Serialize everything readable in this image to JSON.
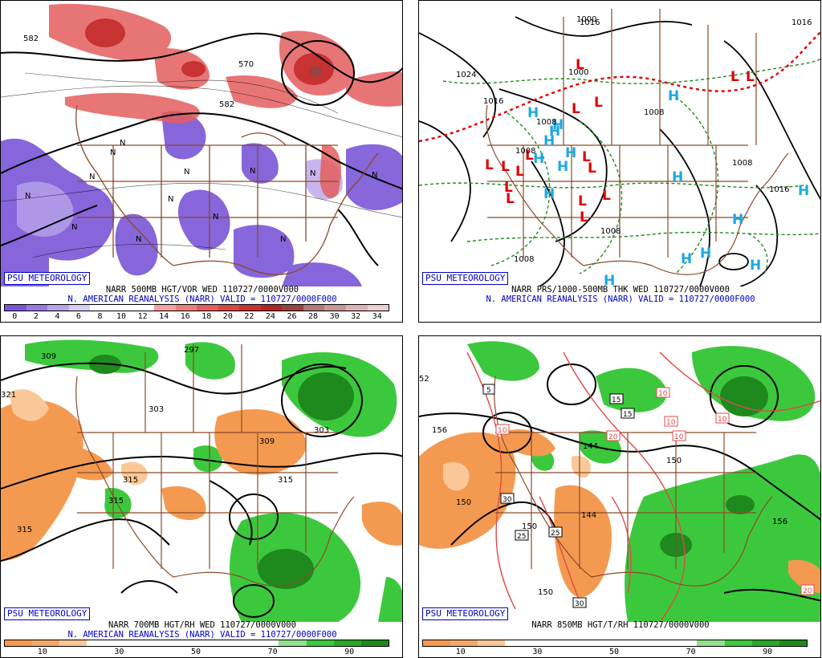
{
  "badge": "PSU METEOROLOGY",
  "panels": [
    {
      "title": "NARR 500MB HGT/VOR WED 110727/0000V000",
      "subtitle": "N. AMERICAN REANALYSIS (NARR) VALID = 110727/0000F000",
      "colorbar_colors": [
        "#7a56d6",
        "#9a7ae0",
        "#b9a4ea",
        "#d8cdf4",
        "#ffffff",
        "#ffffff",
        "#ffffff",
        "#f4a0a0",
        "#ee7e7e",
        "#e45e5e",
        "#d84646",
        "#c83232",
        "#b02626",
        "#9c4040",
        "#b07a7a",
        "#c89898",
        "#dcb4b4",
        "#ecd0d0"
      ],
      "colorbar_ticks": [
        "0",
        "2",
        "4",
        "6",
        "8",
        "10",
        "12",
        "14",
        "16",
        "18",
        "20",
        "22",
        "24",
        "26",
        "28",
        "30",
        "32",
        "34"
      ],
      "contour_labels": [
        "582",
        "570",
        "582"
      ],
      "symbols": [
        "N",
        "N",
        "N",
        "N",
        "N",
        "N",
        "N",
        "N",
        "N",
        "N",
        "N",
        "N",
        "N"
      ]
    },
    {
      "title": "NARR PRS/1000-500MB THK WED 110727/0000V000",
      "subtitle": "N. AMERICAN REANALYSIS (NARR) VALID = 110727/0000F000",
      "contour_labels": [
        "1000",
        "1024",
        "1016",
        "1000",
        "1008",
        "1008",
        "1016",
        "1008",
        "1008",
        "1008",
        "1016",
        "1016",
        "1008"
      ],
      "lows": [
        "L",
        "L",
        "L",
        "L",
        "L",
        "L",
        "L",
        "L",
        "L",
        "L",
        "L",
        "L",
        "L",
        "L",
        "L",
        "L"
      ],
      "highs": [
        "H",
        "H",
        "H",
        "H",
        "H",
        "H",
        "H",
        "H",
        "H",
        "H",
        "H",
        "H",
        "H",
        "H",
        "H",
        "H"
      ]
    },
    {
      "title": "NARR 700MB HGT/RH WED 110727/0000V000",
      "subtitle": "N. AMERICAN REANALYSIS (NARR) VALID = 110727/0000F000",
      "colorbar_colors": [
        "#f49a50",
        "#f4a868",
        "#fac898",
        "#ffffff",
        "#ffffff",
        "#ffffff",
        "#ffffff",
        "#ffffff",
        "#ffffff",
        "#ffffff",
        "#8fe08f",
        "#3cc83c",
        "#2aa82a",
        "#1e8a1e"
      ],
      "colorbar_ticks": [
        "10",
        "30",
        "50",
        "70",
        "90"
      ],
      "contour_labels": [
        "309",
        "297",
        "303",
        "321",
        "315",
        "315",
        "309",
        "315",
        "315",
        "303"
      ]
    },
    {
      "title": "NARR 850MB HGT/T/RH 110727/0000V000",
      "subtitle": "",
      "colorbar_colors": [
        "#f49a50",
        "#f4a868",
        "#fac898",
        "#ffffff",
        "#ffffff",
        "#ffffff",
        "#ffffff",
        "#ffffff",
        "#ffffff",
        "#ffffff",
        "#8fe08f",
        "#3cc83c",
        "#2aa82a",
        "#1e8a1e"
      ],
      "colorbar_ticks": [
        "10",
        "30",
        "50",
        "70",
        "90"
      ],
      "contour_labels": [
        "150",
        "52",
        "156",
        "150",
        "144",
        "144",
        "150",
        "156",
        "150"
      ],
      "temp_boxes": [
        "5",
        "10",
        "10",
        "10",
        "15",
        "15",
        "20",
        "10",
        "10",
        "30",
        "25",
        "25",
        "30",
        "20"
      ]
    }
  ]
}
